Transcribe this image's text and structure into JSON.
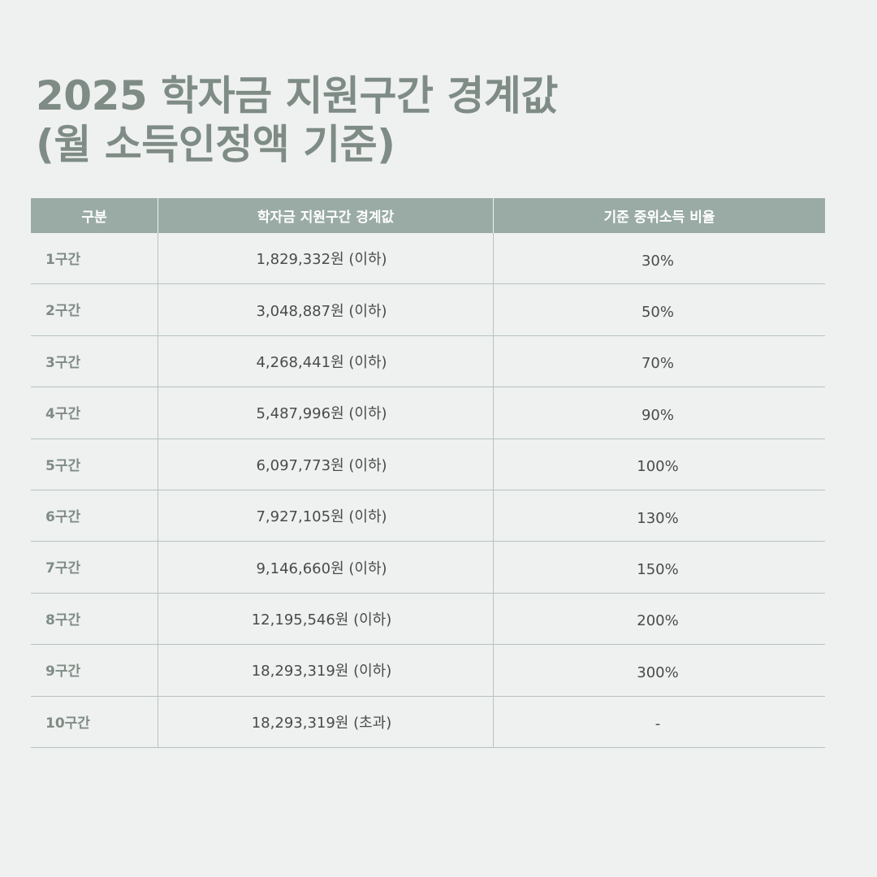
{
  "title": {
    "line1": "2025 학자금 지원구간 경계값",
    "line2": "(월 소득인정액 기준)"
  },
  "table": {
    "headers": {
      "section": "구분",
      "boundary": "학자금 지원구간 경계값",
      "ratio": "기준 중위소득 비율"
    },
    "rows": [
      {
        "section": "1구간",
        "boundary": "1,829,332원 (이하)",
        "ratio": "30%"
      },
      {
        "section": "2구간",
        "boundary": "3,048,887원 (이하)",
        "ratio": "50%"
      },
      {
        "section": "3구간",
        "boundary": "4,268,441원 (이하)",
        "ratio": "70%"
      },
      {
        "section": "4구간",
        "boundary": "5,487,996원 (이하)",
        "ratio": "90%"
      },
      {
        "section": "5구간",
        "boundary": "6,097,773원 (이하)",
        "ratio": "100%"
      },
      {
        "section": "6구간",
        "boundary": "7,927,105원 (이하)",
        "ratio": "130%"
      },
      {
        "section": "7구간",
        "boundary": "9,146,660원 (이하)",
        "ratio": "150%"
      },
      {
        "section": "8구간",
        "boundary": "12,195,546원 (이하)",
        "ratio": "200%"
      },
      {
        "section": "9구간",
        "boundary": "18,293,319원 (이하)",
        "ratio": "300%"
      },
      {
        "section": "10구간",
        "boundary": "18,293,319원 (초과)",
        "ratio": "-"
      }
    ]
  }
}
